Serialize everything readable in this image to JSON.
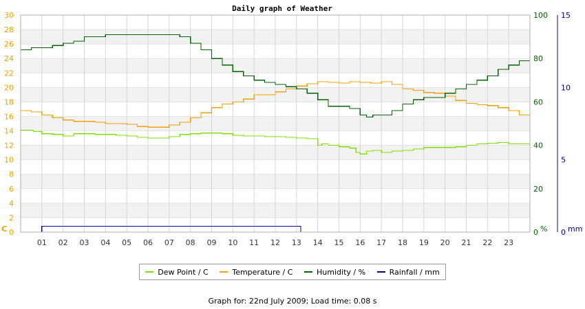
{
  "chart_data": {
    "type": "line",
    "title": "Daily graph of Weather",
    "x_ticks": [
      "01",
      "02",
      "03",
      "04",
      "05",
      "06",
      "07",
      "08",
      "09",
      "10",
      "11",
      "12",
      "13",
      "14",
      "15",
      "16",
      "17",
      "18",
      "19",
      "20",
      "21",
      "22",
      "23"
    ],
    "xlim": [
      0,
      24
    ],
    "axes": {
      "left": {
        "unit_label": "C",
        "ylim": [
          0,
          30
        ],
        "ticks": [
          0,
          2,
          4,
          6,
          8,
          10,
          12,
          14,
          16,
          18,
          20,
          22,
          24,
          26,
          28,
          30
        ],
        "color": "#f2a000"
      },
      "right1": {
        "unit_label": "%",
        "ylim": [
          0,
          100
        ],
        "ticks": [
          0,
          20,
          40,
          60,
          80,
          100
        ],
        "color": "#006400"
      },
      "right2": {
        "unit_label": "mm",
        "ylim": [
          0,
          15
        ],
        "ticks": [
          0,
          5,
          10,
          15
        ],
        "color": "#00008b"
      }
    },
    "grid": true,
    "series": [
      {
        "name": "Dew Point / C",
        "axis": "left",
        "color": "#7ee000",
        "x": [
          0,
          0.3,
          0.6,
          1,
          1.5,
          2,
          2.5,
          3,
          3.5,
          4,
          4.5,
          5,
          5.5,
          6,
          6.5,
          7,
          7.5,
          8,
          8.5,
          9,
          9.5,
          10,
          10.5,
          11,
          11.5,
          12,
          12.5,
          13,
          13.5,
          14,
          14.2,
          14.5,
          15,
          15.5,
          15.8,
          16,
          16.3,
          16.6,
          17,
          17.5,
          18,
          18.5,
          19,
          19.5,
          20,
          20.5,
          21,
          21.5,
          22,
          22.5,
          23,
          23.5,
          24
        ],
        "y": [
          14.1,
          14.1,
          13.9,
          13.6,
          13.5,
          13.3,
          13.6,
          13.6,
          13.5,
          13.5,
          13.4,
          13.3,
          13.1,
          13.0,
          13.0,
          13.2,
          13.5,
          13.6,
          13.7,
          13.7,
          13.6,
          13.4,
          13.3,
          13.3,
          13.2,
          13.2,
          13.1,
          13.0,
          12.9,
          12.0,
          12.2,
          12.0,
          11.8,
          11.6,
          11.0,
          10.8,
          11.2,
          11.3,
          11.0,
          11.2,
          11.3,
          11.5,
          11.7,
          11.7,
          11.7,
          11.8,
          12.0,
          12.2,
          12.3,
          12.4,
          12.2,
          12.2,
          12.2
        ]
      },
      {
        "name": "Temperature / C",
        "axis": "left",
        "color": "#f2a000",
        "x": [
          0,
          0.5,
          1,
          1.5,
          2,
          2.5,
          3,
          3.5,
          4,
          4.5,
          5,
          5.5,
          6,
          6.5,
          7,
          7.5,
          8,
          8.5,
          9,
          9.5,
          10,
          10.5,
          11,
          11.5,
          12,
          12.5,
          13,
          13.5,
          14,
          14.5,
          15,
          15.5,
          16,
          16.5,
          17,
          17.5,
          18,
          18.5,
          19,
          19.5,
          20,
          20.5,
          21,
          21.5,
          22,
          22.5,
          23,
          23.5,
          24
        ],
        "y": [
          16.8,
          16.6,
          16.2,
          15.8,
          15.5,
          15.3,
          15.3,
          15.2,
          15.0,
          15.0,
          14.9,
          14.6,
          14.5,
          14.5,
          14.8,
          15.2,
          15.8,
          16.5,
          17.2,
          17.7,
          18.0,
          18.4,
          19.0,
          19.0,
          19.4,
          19.8,
          20.2,
          20.5,
          20.8,
          20.7,
          20.6,
          20.8,
          20.7,
          20.6,
          20.8,
          20.4,
          19.8,
          19.6,
          19.3,
          19.2,
          18.8,
          18.2,
          17.8,
          17.6,
          17.5,
          17.2,
          16.8,
          16.2,
          15.8
        ]
      },
      {
        "name": "Humidity / %",
        "axis": "right1",
        "color": "#006400",
        "x": [
          0,
          0.5,
          1,
          1.5,
          2,
          2.5,
          3,
          3.5,
          4,
          4.5,
          5,
          5.5,
          6,
          6.5,
          7,
          7.5,
          8,
          8.5,
          9,
          9.5,
          10,
          10.5,
          11,
          11.5,
          12,
          12.5,
          13,
          13.5,
          14,
          14.5,
          15,
          15.5,
          16,
          16.3,
          16.6,
          17,
          17.5,
          18,
          18.5,
          19,
          19.5,
          20,
          20.5,
          21,
          21.5,
          22,
          22.5,
          23,
          23.5,
          24
        ],
        "y": [
          84,
          85,
          85,
          86,
          87,
          88,
          90,
          90,
          91,
          91,
          91,
          91,
          91,
          91,
          91,
          90,
          87,
          84,
          80,
          77,
          74,
          72,
          70,
          69,
          68,
          67,
          66,
          64,
          61,
          58,
          58,
          57,
          54,
          53,
          54,
          54,
          56,
          59,
          61,
          62,
          62,
          64,
          66,
          68,
          70,
          72,
          75,
          77,
          79,
          79
        ]
      },
      {
        "name": "Rainfall / mm",
        "axis": "right2",
        "color": "#00008b",
        "x": [
          0,
          0.95,
          1,
          13.15,
          13.2,
          24
        ],
        "y": [
          0,
          0,
          0.4,
          0.4,
          0,
          0
        ]
      }
    ]
  },
  "legend": [
    "Dew Point / C",
    "Temperature / C",
    "Humidity / %",
    "Rainfall / mm"
  ],
  "footer": "Graph for: 22nd July 2009; Load time: 0.08 s"
}
